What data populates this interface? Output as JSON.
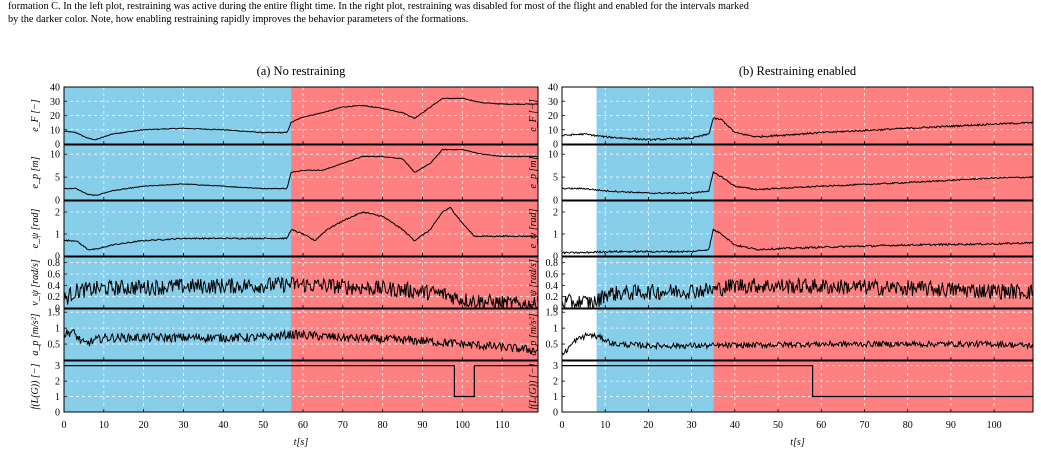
{
  "caption": {
    "line1": "formation C. In the left plot, restraining was active during the entire flight time. In the right plot, restraining was disabled for most of the flight and enabled for the intervals marked",
    "line2": "by the darker color. Note, how enabling restraining rapidly improves the behavior parameters of the formations."
  },
  "colors": {
    "blue": "#87CEEB",
    "red": "#FF8080",
    "grid": "#ffffff",
    "line": "#000000"
  },
  "chart_data": [
    {
      "type": "line",
      "title": "(a) No restraining",
      "xlabel": "t[s]",
      "xlim": [
        0,
        119
      ],
      "xticks": [
        0,
        10,
        20,
        30,
        40,
        50,
        60,
        70,
        80,
        90,
        100,
        110
      ],
      "bands": [
        {
          "from": 0,
          "to": 57,
          "color": "blue"
        },
        {
          "from": 57,
          "to": 119,
          "color": "red"
        }
      ],
      "panels": [
        {
          "ylabel": "e_F [−]",
          "ylim": [
            0,
            40
          ],
          "yticks": [
            0,
            10,
            20,
            30,
            40
          ],
          "noise": 0.3,
          "x": [
            0,
            3,
            6,
            8,
            12,
            20,
            30,
            40,
            50,
            56,
            57,
            60,
            65,
            70,
            75,
            80,
            85,
            88,
            92,
            95,
            100,
            105,
            110,
            119
          ],
          "y": [
            9,
            8,
            4,
            3,
            7,
            10,
            11,
            10,
            8,
            8,
            15,
            19,
            22,
            26,
            27,
            25,
            22,
            18,
            26,
            32,
            32,
            29,
            28,
            28
          ]
        },
        {
          "ylabel": "e_p [m]",
          "ylim": [
            0,
            12
          ],
          "yticks": [
            0,
            5,
            10
          ],
          "noise": 0.08,
          "x": [
            0,
            3,
            6,
            8,
            12,
            20,
            30,
            40,
            50,
            56,
            57,
            60,
            65,
            70,
            75,
            80,
            85,
            88,
            92,
            95,
            100,
            105,
            110,
            119
          ],
          "y": [
            2.5,
            2.5,
            1.2,
            1,
            2,
            3,
            3.5,
            3,
            2.5,
            2.5,
            6,
            6.5,
            6.5,
            8,
            9.5,
            9.5,
            9,
            6,
            8,
            11,
            11,
            10,
            9.5,
            9.5
          ]
        },
        {
          "ylabel": "e_ψ [rad]",
          "ylim": [
            0,
            2.5
          ],
          "yticks": [
            0,
            1,
            2
          ],
          "noise": 0.03,
          "x": [
            0,
            3,
            6,
            8,
            12,
            20,
            30,
            40,
            50,
            56,
            57,
            60,
            63,
            66,
            70,
            75,
            80,
            85,
            88,
            92,
            95,
            97,
            100,
            103,
            110,
            119
          ],
          "y": [
            0.7,
            0.7,
            0.3,
            0.3,
            0.5,
            0.7,
            0.8,
            0.8,
            0.8,
            0.8,
            1.2,
            1,
            0.7,
            1.2,
            1.6,
            2,
            1.8,
            1.2,
            0.7,
            1.2,
            2,
            2.2,
            1.5,
            0.9,
            0.9,
            0.9
          ]
        },
        {
          "ylabel": "v_ψ [rad/s]",
          "ylim": [
            0,
            0.9
          ],
          "yticks": [
            0,
            0.2,
            0.4,
            0.6,
            0.8
          ],
          "noise": 0.14,
          "x": [
            0,
            3,
            10,
            30,
            50,
            57,
            70,
            85,
            95,
            100,
            110,
            119
          ],
          "y": [
            0.15,
            0.3,
            0.35,
            0.38,
            0.4,
            0.42,
            0.38,
            0.32,
            0.25,
            0.15,
            0.08,
            0.05
          ]
        },
        {
          "ylabel": "a_p [m/s²]",
          "ylim": [
            0,
            1.6
          ],
          "yticks": [
            0.5,
            1,
            1.5
          ],
          "noise": 0.14,
          "x": [
            0,
            2,
            5,
            10,
            30,
            50,
            57,
            70,
            90,
            100,
            110,
            119
          ],
          "y": [
            0.8,
            0.9,
            0.5,
            0.7,
            0.7,
            0.7,
            0.8,
            0.7,
            0.6,
            0.5,
            0.4,
            0.3
          ]
        },
        {
          "ylabel": "f(L(G)) [−]",
          "ylim": [
            0,
            3.3
          ],
          "yticks": [
            0,
            1,
            2,
            3
          ],
          "noise": 0,
          "step": true,
          "x": [
            0,
            98,
            98,
            103,
            103,
            119
          ],
          "y": [
            3,
            3,
            1,
            1,
            3,
            3
          ]
        }
      ]
    },
    {
      "type": "line",
      "title": "(b) Restraining enabled",
      "xlabel": "t[s]",
      "xlim": [
        0,
        109
      ],
      "xticks": [
        0,
        10,
        20,
        30,
        40,
        50,
        60,
        70,
        80,
        90,
        100
      ],
      "bands": [
        {
          "from": 0,
          "to": 8,
          "color": "none"
        },
        {
          "from": 8,
          "to": 35,
          "color": "blue"
        },
        {
          "from": 35,
          "to": 109,
          "color": "red"
        }
      ],
      "panels": [
        {
          "ylabel": "e_F [−]",
          "ylim": [
            0,
            40
          ],
          "yticks": [
            0,
            10,
            20,
            30,
            40
          ],
          "noise": 0.6,
          "x": [
            0,
            5,
            10,
            20,
            30,
            34,
            35,
            37,
            40,
            45,
            60,
            80,
            100,
            109
          ],
          "y": [
            6,
            7,
            5,
            3,
            4,
            7,
            18,
            17,
            8,
            5,
            8,
            11,
            14,
            15
          ]
        },
        {
          "ylabel": "e_p [m]",
          "ylim": [
            0,
            12
          ],
          "yticks": [
            0,
            5,
            10
          ],
          "noise": 0.15,
          "x": [
            0,
            5,
            10,
            20,
            30,
            34,
            35,
            37,
            40,
            45,
            60,
            80,
            100,
            109
          ],
          "y": [
            2.5,
            2.5,
            2,
            1.5,
            1.5,
            2,
            6,
            5,
            3,
            2.3,
            3,
            3.8,
            4.8,
            5
          ]
        },
        {
          "ylabel": "e_ψ [rad]",
          "ylim": [
            0,
            2.5
          ],
          "yticks": [
            0,
            1,
            2
          ],
          "noise": 0.04,
          "x": [
            0,
            5,
            10,
            20,
            30,
            34,
            35,
            37,
            40,
            45,
            60,
            80,
            100,
            109
          ],
          "y": [
            0.15,
            0.15,
            0.2,
            0.2,
            0.2,
            0.3,
            1.2,
            1,
            0.5,
            0.3,
            0.4,
            0.5,
            0.55,
            0.6
          ]
        },
        {
          "ylabel": "v_ψ [rad/s]",
          "ylim": [
            0,
            0.9
          ],
          "yticks": [
            0,
            0.2,
            0.4,
            0.6,
            0.8
          ],
          "noise": 0.14,
          "x": [
            0,
            8,
            10,
            20,
            35,
            40,
            60,
            80,
            100,
            109
          ],
          "y": [
            0.1,
            0.1,
            0.25,
            0.28,
            0.32,
            0.4,
            0.38,
            0.35,
            0.3,
            0.28
          ]
        },
        {
          "ylabel": "a_p [m/s²]",
          "ylim": [
            0,
            1.6
          ],
          "yticks": [
            0.5,
            1,
            1.5
          ],
          "noise": 0.09,
          "x": [
            0,
            3,
            6,
            9,
            12,
            20,
            35,
            60,
            80,
            100,
            109
          ],
          "y": [
            0.15,
            0.6,
            0.8,
            0.7,
            0.5,
            0.45,
            0.45,
            0.5,
            0.5,
            0.5,
            0.45
          ]
        },
        {
          "ylabel": "f(L(G)) [−]",
          "ylim": [
            0,
            3.3
          ],
          "yticks": [
            0,
            1,
            2,
            3
          ],
          "noise": 0,
          "step": true,
          "x": [
            0,
            58,
            58,
            109
          ],
          "y": [
            3,
            3,
            1,
            1
          ]
        }
      ]
    }
  ]
}
